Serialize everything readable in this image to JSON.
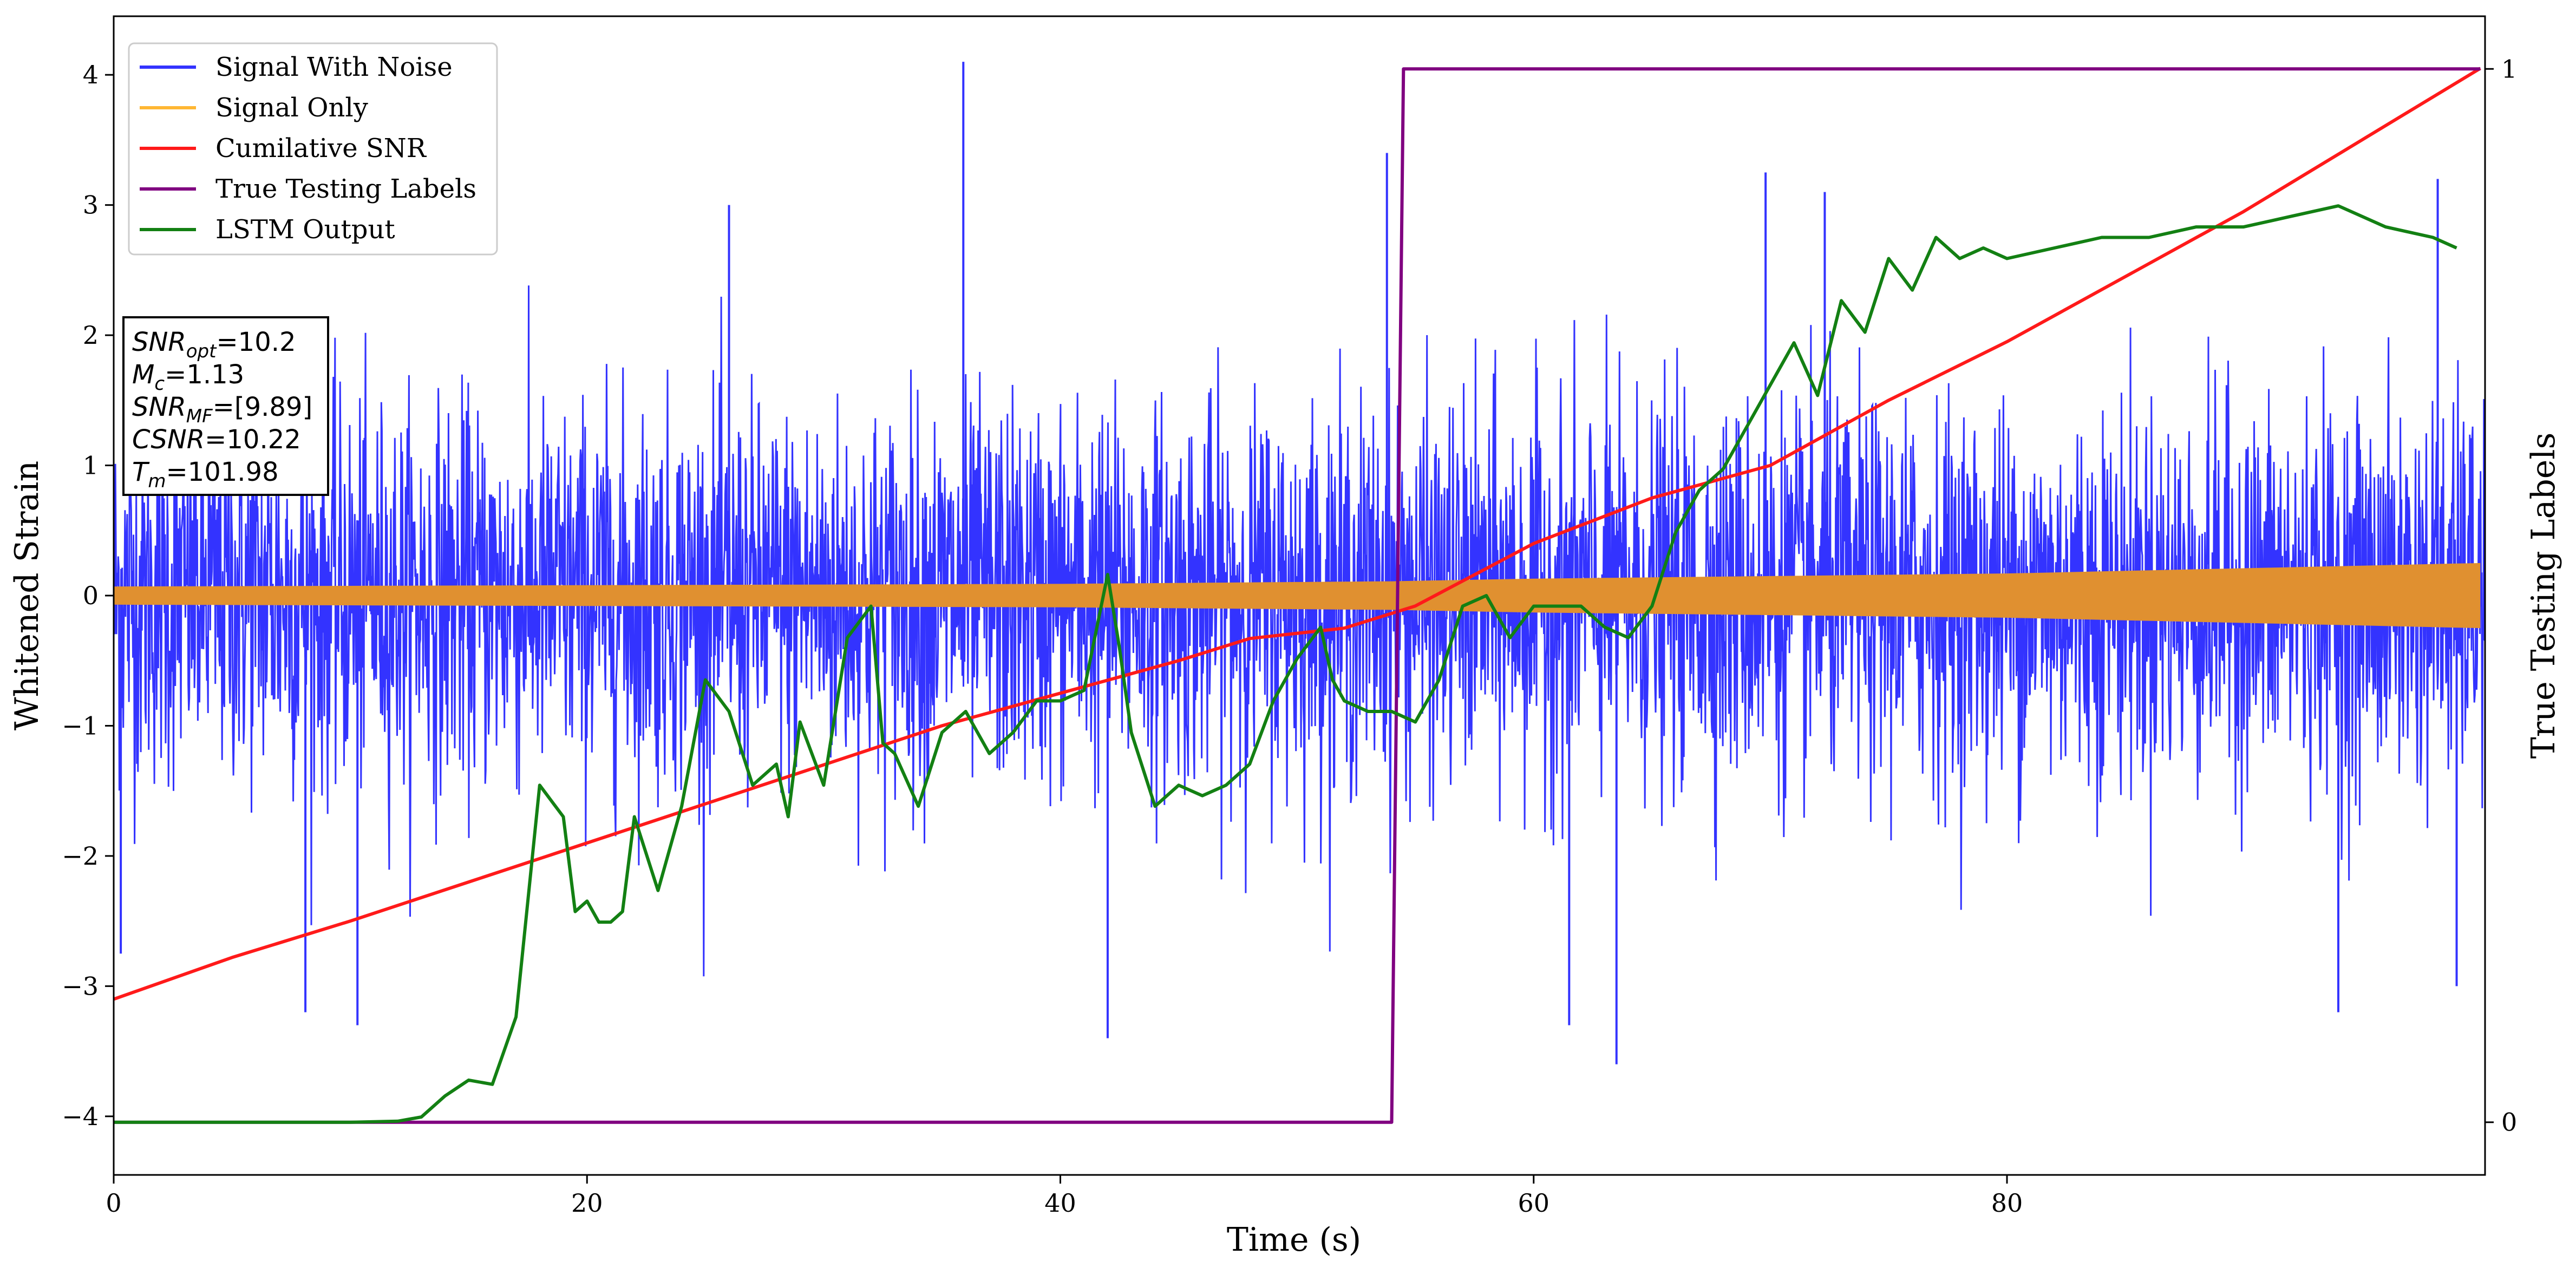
{
  "chart_data": {
    "type": "line",
    "xlabel": "Time (s)",
    "ylabel": "Whitened Strain",
    "ylabel_right": "True Testing Labels",
    "xlim": [
      0,
      100.2
    ],
    "ylim": [
      -4.45,
      4.45
    ],
    "ylim_right": [
      -0.05,
      1.05
    ],
    "x_ticks": [
      0,
      20,
      40,
      60,
      80
    ],
    "y_ticks": [
      -4,
      -3,
      -2,
      -1,
      0,
      1,
      2,
      3,
      4
    ],
    "y_ticks_right": [
      0,
      1
    ],
    "grid": false,
    "legend_position": "top-left",
    "legend": [
      {
        "name": "Signal With Noise",
        "color": "#3333ff"
      },
      {
        "name": "Signal Only",
        "color": "#ffb733"
      },
      {
        "name": "Cumilative SNR",
        "color": "#ff1a1a"
      },
      {
        "name": "True Testing Labels",
        "color": "#800080"
      },
      {
        "name": "LSTM Output",
        "color": "#138013"
      }
    ],
    "annotation": [
      {
        "base": "SNR",
        "sub": "opt",
        "value": "=10.2"
      },
      {
        "base": "M",
        "sub": "c",
        "value": "=1.13"
      },
      {
        "base": "SNR",
        "sub": "MF",
        "value": "=[9.89]"
      },
      {
        "base": "CSNR",
        "sub": "",
        "value": "=10.22"
      },
      {
        "base": "T",
        "sub": "m",
        "value": "=101.98"
      }
    ],
    "series": [
      {
        "name": "Signal With Noise",
        "axis": "left",
        "kind": "noise-band",
        "color": "#3333ff",
        "typical_abs_max": 1.6,
        "peak_abs_max": 4.1,
        "spikes": [
          {
            "x": 35.9,
            "y": 4.1
          },
          {
            "x": 53.8,
            "y": 3.4
          },
          {
            "x": 69.8,
            "y": 3.25
          },
          {
            "x": 72.3,
            "y": 3.1
          },
          {
            "x": 98.2,
            "y": 3.2
          },
          {
            "x": 26.0,
            "y": 3.0
          },
          {
            "x": 10.3,
            "y": -3.3
          },
          {
            "x": 8.1,
            "y": -3.2
          },
          {
            "x": 42.0,
            "y": -3.4
          },
          {
            "x": 61.5,
            "y": -3.3
          },
          {
            "x": 63.5,
            "y": -3.6
          },
          {
            "x": 94.0,
            "y": -3.2
          },
          {
            "x": 99.0,
            "y": -3.0
          },
          {
            "x": 0.3,
            "y": -2.75
          }
        ]
      },
      {
        "name": "Signal Only",
        "axis": "left",
        "kind": "envelope",
        "color": "#e09030",
        "x": [
          0,
          20,
          40,
          54,
          60,
          80,
          100
        ],
        "amplitude": [
          0.07,
          0.08,
          0.09,
          0.11,
          0.13,
          0.17,
          0.25
        ]
      },
      {
        "name": "Cumilative SNR",
        "axis": "left",
        "color": "#ff1a1a",
        "x": [
          0,
          5,
          10,
          15,
          20,
          25,
          30,
          35,
          40,
          45,
          48,
          52,
          55,
          60,
          65,
          70,
          75,
          80,
          85,
          90,
          95,
          100
        ],
        "values": [
          -3.1,
          -2.78,
          -2.5,
          -2.2,
          -1.9,
          -1.6,
          -1.3,
          -1.0,
          -0.75,
          -0.5,
          -0.33,
          -0.25,
          -0.08,
          0.4,
          0.75,
          1.0,
          1.5,
          1.95,
          2.45,
          2.95,
          3.5,
          4.05
        ]
      },
      {
        "name": "True Testing Labels",
        "axis": "right",
        "color": "#800080",
        "x": [
          0,
          54.0,
          54.5,
          100
        ],
        "values": [
          0,
          0,
          1,
          1
        ]
      },
      {
        "name": "LSTM Output",
        "axis": "right",
        "color": "#138013",
        "x": [
          0,
          10,
          12,
          13,
          14,
          15,
          16,
          17,
          18,
          19,
          19.5,
          20,
          20.5,
          21,
          21.5,
          22,
          23,
          24,
          25,
          26,
          27,
          28,
          28.5,
          29,
          30,
          31,
          32,
          32.5,
          33,
          34,
          35,
          36,
          37,
          38,
          39,
          40,
          41,
          42,
          42.5,
          43,
          44,
          45,
          46,
          47,
          48,
          49,
          50,
          51,
          51.5,
          52,
          53,
          54,
          55,
          56,
          57,
          58,
          59,
          60,
          61,
          62,
          63,
          64,
          65,
          66,
          67,
          68,
          69,
          70,
          71,
          72,
          73,
          74,
          75,
          76,
          77,
          78,
          79,
          80,
          82,
          84,
          86,
          88,
          90,
          92,
          94,
          96,
          98,
          99
        ],
        "values": [
          0,
          0,
          0.001,
          0.005,
          0.025,
          0.04,
          0.036,
          0.1,
          0.32,
          0.29,
          0.2,
          0.21,
          0.19,
          0.19,
          0.2,
          0.29,
          0.22,
          0.3,
          0.42,
          0.39,
          0.32,
          0.34,
          0.29,
          0.38,
          0.32,
          0.46,
          0.49,
          0.36,
          0.35,
          0.3,
          0.37,
          0.39,
          0.35,
          0.37,
          0.4,
          0.4,
          0.41,
          0.52,
          0.45,
          0.37,
          0.3,
          0.32,
          0.31,
          0.32,
          0.34,
          0.4,
          0.44,
          0.47,
          0.42,
          0.4,
          0.39,
          0.39,
          0.38,
          0.42,
          0.49,
          0.5,
          0.46,
          0.49,
          0.49,
          0.49,
          0.47,
          0.46,
          0.49,
          0.56,
          0.6,
          0.62,
          0.66,
          0.7,
          0.74,
          0.69,
          0.78,
          0.75,
          0.82,
          0.79,
          0.84,
          0.82,
          0.83,
          0.82,
          0.83,
          0.84,
          0.84,
          0.85,
          0.85,
          0.86,
          0.87,
          0.85,
          0.84,
          0.83
        ]
      }
    ]
  }
}
